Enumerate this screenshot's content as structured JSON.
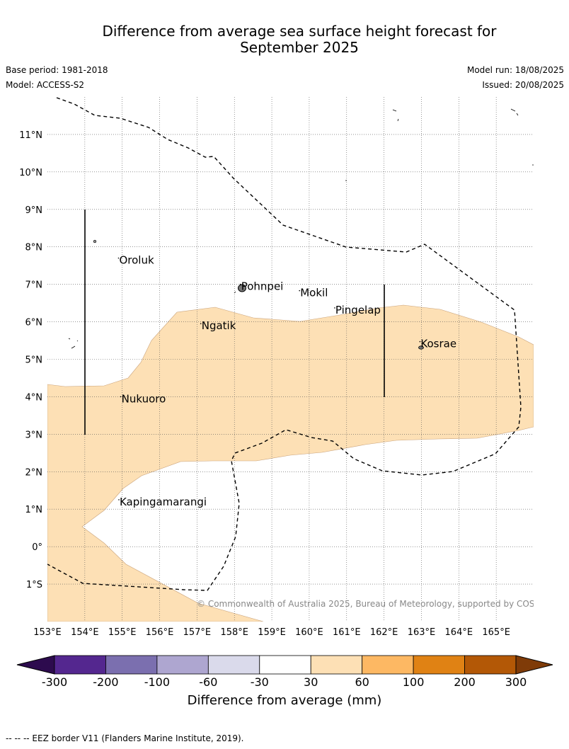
{
  "header": {
    "title_line1": "Difference from average sea surface height forecast for",
    "title_line2": "September 2025",
    "base_period": "Base period: 1981-2018",
    "model": "Model: ACCESS-S2",
    "model_run": "Model run: 18/08/2025",
    "issued": "Issued: 20/08/2025"
  },
  "map": {
    "lon_labels": [
      "153°E",
      "154°E",
      "155°E",
      "156°E",
      "157°E",
      "158°E",
      "159°E",
      "160°E",
      "161°E",
      "162°E",
      "163°E",
      "164°E",
      "165°E"
    ],
    "lat_labels": [
      "11°N",
      "10°N",
      "9°N",
      "8°N",
      "7°N",
      "6°N",
      "5°N",
      "4°N",
      "3°N",
      "2°N",
      "1°N",
      "0°",
      "1°S"
    ],
    "places": [
      {
        "name": "Oroluk",
        "lon": 154.92,
        "lat": 7.55
      },
      {
        "name": "Pohnpei",
        "lon": 158.18,
        "lat": 6.85
      },
      {
        "name": "Mokil",
        "lon": 159.76,
        "lat": 6.68
      },
      {
        "name": "Pingelap",
        "lon": 160.7,
        "lat": 6.22
      },
      {
        "name": "Ngatik",
        "lon": 157.12,
        "lat": 5.8
      },
      {
        "name": "Kosrae",
        "lon": 162.98,
        "lat": 5.32
      },
      {
        "name": "Nukuoro",
        "lon": 154.98,
        "lat": 3.85
      },
      {
        "name": "Kapingamarangi",
        "lon": 154.93,
        "lat": 1.1
      }
    ],
    "anomaly_fill_color": "#fde0b5",
    "anomaly_class": "30 to 60 mm",
    "copyright": "© Commonwealth of Australia 2025, Bureau of Meteorology, supported by COSPPac"
  },
  "colorbar": {
    "label": "Difference from average (mm)",
    "ticks": [
      "-300",
      "-200",
      "-100",
      "-60",
      "-30",
      "30",
      "60",
      "100",
      "200",
      "300"
    ],
    "colors": [
      "#2d0b4e",
      "#54278f",
      "#7b6faf",
      "#aea6d0",
      "#dadaeb",
      "#ffffff",
      "#fde0b5",
      "#fdb863",
      "#e08214",
      "#b35806",
      "#7f3b08"
    ]
  },
  "footnote": "-- -- -- EEZ border V11 (Flanders Marine Institute, 2019)."
}
